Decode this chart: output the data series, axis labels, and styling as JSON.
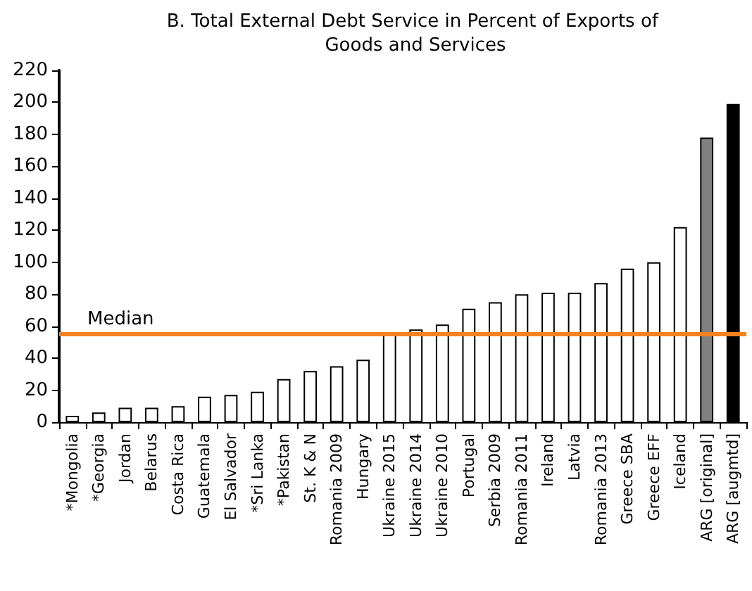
{
  "chart_data": {
    "type": "bar",
    "title": "B. Total External Debt Service in Percent of Exports of Goods and Services",
    "categories": [
      "*Mongolia",
      "*Georgia",
      "Jordan",
      "Belarus",
      "Costa Rica",
      "Guatemala",
      "El Salvador",
      "*Sri Lanka",
      "*Pakistan",
      "St. K & N",
      "Romania 2009",
      "Hungary",
      "Ukraine 2015",
      "Ukraine 2014",
      "Ukraine 2010",
      "Portugal",
      "Serbia 2009",
      "Romania 2011",
      "Ireland",
      "Latvia",
      "Romania 2013",
      "Greece SBA",
      "Greece EFF",
      "Iceland",
      "ARG [original]",
      "ARG [augmtd]"
    ],
    "values": [
      4,
      6,
      9,
      9,
      10,
      16,
      17,
      19,
      27,
      32,
      35,
      39,
      55,
      58,
      61,
      71,
      75,
      80,
      81,
      81,
      87,
      96,
      100,
      122,
      178,
      199
    ],
    "colors": [
      "#ffffff",
      "#ffffff",
      "#ffffff",
      "#ffffff",
      "#ffffff",
      "#ffffff",
      "#ffffff",
      "#ffffff",
      "#ffffff",
      "#ffffff",
      "#ffffff",
      "#ffffff",
      "#ffffff",
      "#ffffff",
      "#ffffff",
      "#ffffff",
      "#ffffff",
      "#ffffff",
      "#ffffff",
      "#ffffff",
      "#ffffff",
      "#ffffff",
      "#ffffff",
      "#ffffff",
      "#808080",
      "#000000"
    ],
    "ylim": [
      0,
      220
    ],
    "yticks": [
      0,
      20,
      40,
      60,
      80,
      100,
      120,
      140,
      160,
      180,
      200,
      220
    ],
    "ref_lines": [
      {
        "axis": "y",
        "value": 55,
        "label": "Median",
        "color": "#f58220"
      }
    ],
    "grid": false
  }
}
